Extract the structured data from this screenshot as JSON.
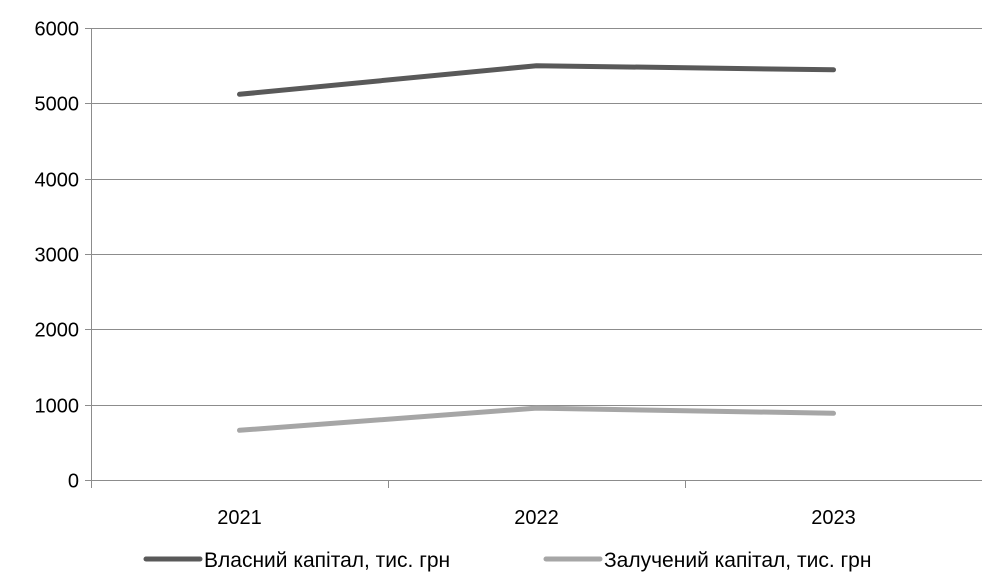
{
  "chart_data": {
    "type": "line",
    "categories": [
      "2021",
      "2022",
      "2023"
    ],
    "series": [
      {
        "name": "Власний капітал, тис. грн",
        "values": [
          5120,
          5500,
          5445
        ],
        "color": "#595959"
      },
      {
        "name": "Залучений капітал, тис. грн",
        "values": [
          660,
          955,
          885
        ],
        "color": "#a6a6a6"
      }
    ],
    "y_ticks": [
      "0",
      "1000",
      "2000",
      "3000",
      "4000",
      "5000",
      "6000"
    ],
    "ylim": [
      0,
      6000
    ],
    "grid": "horizontal",
    "legend": "bottom",
    "title": "",
    "xlabel": "",
    "ylabel": ""
  }
}
